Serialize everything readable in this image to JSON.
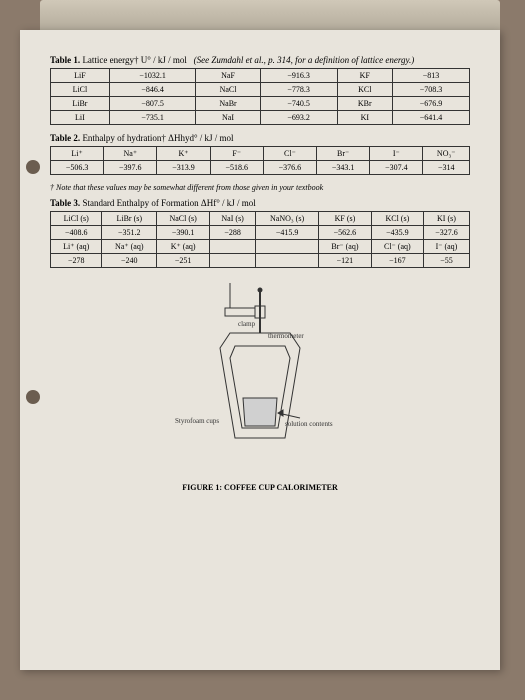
{
  "table1": {
    "title_prefix": "Table 1.",
    "title_main": " Lattice energy† U° / kJ / mol",
    "title_ref": "(See Zumdahl et al., p. 314, for a definition of lattice energy.)",
    "rows": [
      [
        "LiF",
        "−1032.1",
        "NaF",
        "−916.3",
        "KF",
        "−813"
      ],
      [
        "LiCl",
        "−846.4",
        "NaCl",
        "−778.3",
        "KCl",
        "−708.3"
      ],
      [
        "LiBr",
        "−807.5",
        "NaBr",
        "−740.5",
        "KBr",
        "−676.9"
      ],
      [
        "LiI",
        "−735.1",
        "NaI",
        "−693.2",
        "KI",
        "−641.4"
      ]
    ]
  },
  "table2": {
    "title_prefix": "Table 2.",
    "title_main": " Enthalpy of hydration† ΔHhyd° / kJ / mol",
    "rows": [
      [
        "Li⁺",
        "Na⁺",
        "K⁺",
        "F⁻",
        "Cl⁻",
        "Br⁻",
        "I⁻",
        "NO₃⁻"
      ],
      [
        "−506.3",
        "−397.6",
        "−313.9",
        "−518.6",
        "−376.6",
        "−343.1",
        "−307.4",
        "−314"
      ]
    ]
  },
  "note": "† Note that these values may be somewhat different from those given in your textbook",
  "table3": {
    "title_prefix": "Table 3.",
    "title_main": " Standard Enthalpy of Formation ΔHf° / kJ / mol",
    "rows": [
      [
        "LiCl (s)",
        "LiBr (s)",
        "NaCl (s)",
        "NaI (s)",
        "NaNO₃ (s)",
        "KF (s)",
        "KCl (s)",
        "KI (s)"
      ],
      [
        "−408.6",
        "−351.2",
        "−390.1",
        "−288",
        "−415.9",
        "−562.6",
        "−435.9",
        "−327.6"
      ],
      [
        "Li⁺ (aq)",
        "Na⁺ (aq)",
        "K⁺ (aq)",
        "",
        "",
        "Br⁻ (aq)",
        "Cl⁻ (aq)",
        "I⁻ (aq)"
      ],
      [
        "−278",
        "−240",
        "−251",
        "",
        "",
        "−121",
        "−167",
        "−55"
      ]
    ]
  },
  "diagram": {
    "label_clamp": "clamp",
    "label_thermometer": "thermometer",
    "label_cups": "Styrofoam cups",
    "label_solution": "solution contents",
    "stroke": "#333333",
    "fill_cup": "#e8e4dc",
    "font_size": 7
  },
  "figure_caption": "FIGURE 1: COFFEE CUP CALORIMETER",
  "colors": {
    "page_bg": "#e8e4dc",
    "desk": "#8b7a6b",
    "border": "#333333"
  }
}
